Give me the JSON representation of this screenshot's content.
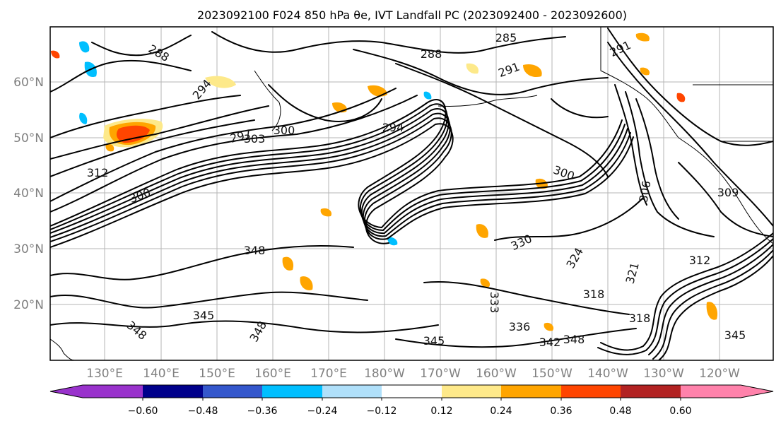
{
  "title": "2023092100 F024 850 hPa θe, IVT Landfall PC (2023092400 - 2023092600)",
  "map": {
    "lat_labels": [
      "60°N",
      "50°N",
      "40°N",
      "30°N",
      "20°N"
    ],
    "lon_labels": [
      "130°E",
      "140°E",
      "150°E",
      "160°E",
      "170°E",
      "180°W",
      "170°W",
      "160°W",
      "150°W",
      "140°W",
      "130°W",
      "120°W"
    ],
    "contour_labels": [
      "285",
      "288",
      "288",
      "291",
      "291",
      "294",
      "294",
      "297",
      "300",
      "303",
      "300",
      "300",
      "306",
      "309",
      "312",
      "312",
      "318",
      "318",
      "321",
      "324",
      "330",
      "333",
      "336",
      "342",
      "345",
      "345",
      "345",
      "348",
      "348",
      "348",
      "348"
    ],
    "shaded_colors": {
      "light_yellow": "#fde98a",
      "orange": "#ffa500",
      "red_orange": "#ff4500",
      "dark_red": "#b22222",
      "light_blue": "#a6dcf7",
      "deep_sky_blue": "#00bfff"
    }
  },
  "colorbar": {
    "tick_labels": [
      "−0.60",
      "−0.48",
      "−0.36",
      "−0.24",
      "−0.12",
      "0.12",
      "0.24",
      "0.36",
      "0.48",
      "0.60"
    ],
    "colors": [
      "#9932cc",
      "#00008b",
      "#3457cc",
      "#00bfff",
      "#b0e0fa",
      "#ffffff",
      "#fee98a",
      "#ffa500",
      "#ff4500",
      "#b22222",
      "#ff82ab"
    ]
  }
}
